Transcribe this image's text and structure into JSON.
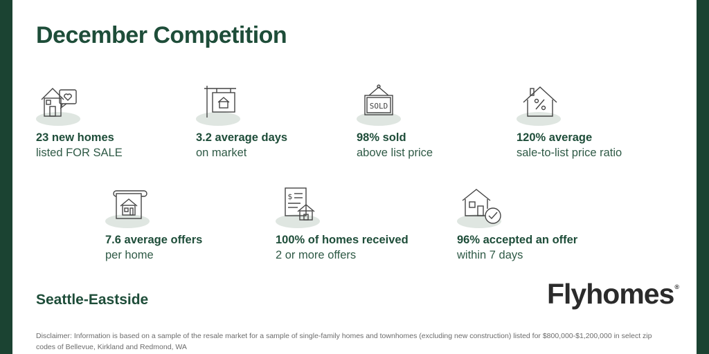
{
  "title": "December Competition",
  "stats": [
    {
      "icon": "house-heart-icon",
      "line1": "23 new homes",
      "line2": "listed FOR SALE"
    },
    {
      "icon": "sale-sign-icon",
      "line1": "3.2 average days",
      "line2": "on market"
    },
    {
      "icon": "sold-sign-icon",
      "line1": "98% sold",
      "line2": "above list price"
    },
    {
      "icon": "house-percent-icon",
      "line1": "120% average",
      "line2": "sale-to-list price ratio"
    },
    {
      "icon": "house-scroll-icon",
      "line1": "7.6 average offers",
      "line2": "per home"
    },
    {
      "icon": "offer-document-icon",
      "line1": "100% of homes received",
      "line2": "2 or more offers"
    },
    {
      "icon": "house-check-icon",
      "line1": "96% accepted an offer",
      "line2": "within 7 days"
    }
  ],
  "region": "Seattle-Eastside",
  "logo": {
    "text": "Flyhomes",
    "mark": "®"
  },
  "disclaimer": "Disclaimer: Information is based on a sample of the resale market for a sample of single-family homes and townhomes (excluding new construction) listed for $800,000-$1,200,000 in select zip codes of  Bellevue, Kirkland and Redmond, WA",
  "colors": {
    "accent": "#1e4d39",
    "edge": "#1b4332",
    "icon": "#444444",
    "shadow": "#dfe6e1"
  }
}
